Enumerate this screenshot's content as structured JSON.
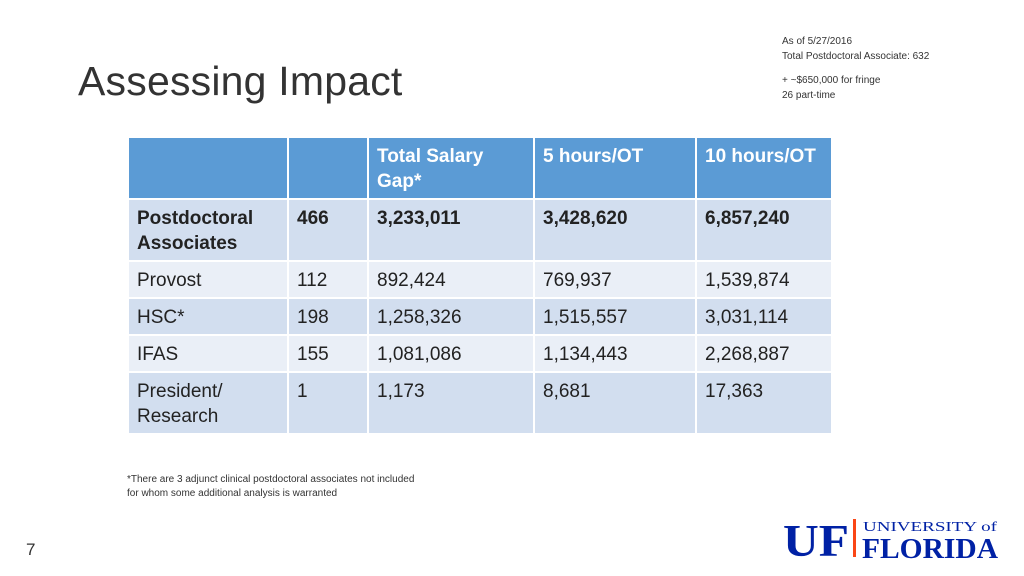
{
  "slide": {
    "title": "Assessing Impact",
    "page_number": "7"
  },
  "notes": {
    "line1": "As of 5/27/2016",
    "line2": "Total Postdoctoral Associate: 632",
    "line3": "+ ~$650,000 for fringe",
    "line4": "26 part-time"
  },
  "table": {
    "headers": [
      "",
      "",
      "Total Salary Gap*",
      "5 hours/OT",
      "10 hours/OT"
    ],
    "rows": [
      [
        "Postdoctoral Associates",
        "466",
        "3,233,011",
        "3,428,620",
        "6,857,240"
      ],
      [
        "Provost",
        "112",
        "892,424",
        "769,937",
        "1,539,874"
      ],
      [
        "HSC*",
        "198",
        "1,258,326",
        "1,515,557",
        "3,031,114"
      ],
      [
        "IFAS",
        "155",
        "1,081,086",
        "1,134,443",
        "2,268,887"
      ],
      [
        "President/ Research",
        "1",
        "1,173",
        "8,681",
        "17,363"
      ]
    ]
  },
  "footnote": {
    "line1": "*There are 3 adjunct clinical postdoctoral associates not included",
    "line2": "for whom some additional analysis is warranted"
  },
  "logo": {
    "mark": "UF",
    "top": "UNIVERSITY of",
    "bottom": "FLORIDA",
    "colors": {
      "blue": "#0021a5",
      "orange": "#fa4616"
    }
  }
}
